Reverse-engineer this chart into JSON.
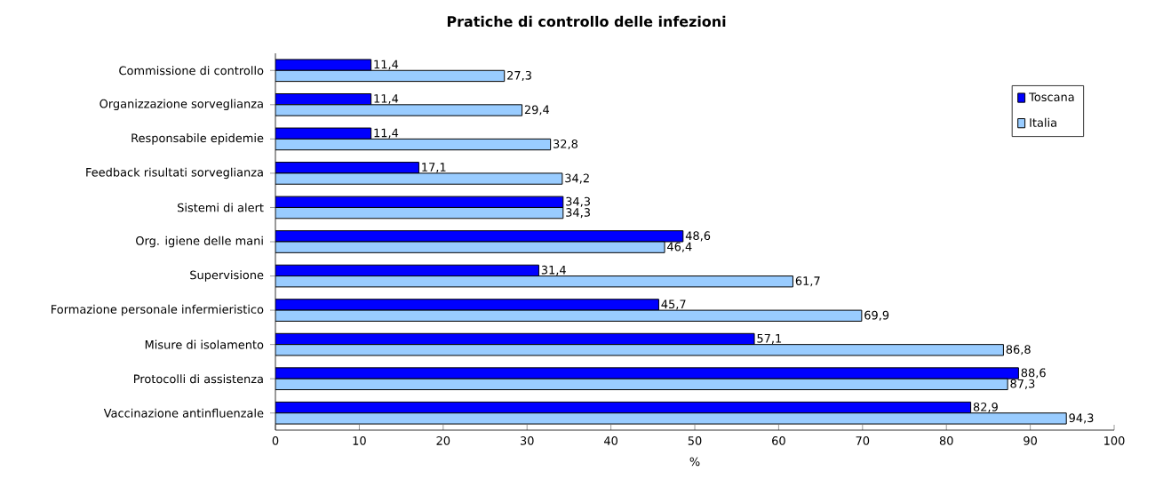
{
  "chart_data": {
    "type": "bar",
    "orientation": "horizontal",
    "title": "Pratiche di controllo delle infezioni",
    "xlabel": "%",
    "categories": [
      "Commissione di controllo",
      "Organizzazione sorveglianza",
      "Responsabile epidemie",
      "Feedback risultati sorveglianza",
      "Sistemi di alert",
      "Org. igiene delle mani",
      "Supervisione",
      "Formazione personale infermieristico",
      "Misure di isolamento",
      "Protocolli di assistenza",
      "Vaccinazione antinfluenzale"
    ],
    "series": [
      {
        "name": "Toscana",
        "color": "#0000ff",
        "values": [
          11.4,
          11.4,
          11.4,
          17.1,
          34.3,
          48.6,
          31.4,
          45.7,
          57.1,
          88.6,
          82.9
        ],
        "value_labels": [
          "11,4",
          "11,4",
          "11,4",
          "17,1",
          "34,3",
          "48,6",
          "31,4",
          "45,7",
          "57,1",
          "88,6",
          "82,9"
        ]
      },
      {
        "name": "Italia",
        "color": "#99ccff",
        "values": [
          27.3,
          29.4,
          32.8,
          34.2,
          34.3,
          46.4,
          61.7,
          69.9,
          86.8,
          87.3,
          94.3
        ],
        "value_labels": [
          "27,3",
          "29,4",
          "32,8",
          "34,2",
          "34,3",
          "46,4",
          "61,7",
          "69,9",
          "86,8",
          "87,3",
          "94,3"
        ]
      }
    ],
    "xlim": [
      0,
      100
    ],
    "xticks": [
      0,
      10,
      20,
      30,
      40,
      50,
      60,
      70,
      80,
      90,
      100
    ],
    "grid": false,
    "legend": "top right"
  }
}
